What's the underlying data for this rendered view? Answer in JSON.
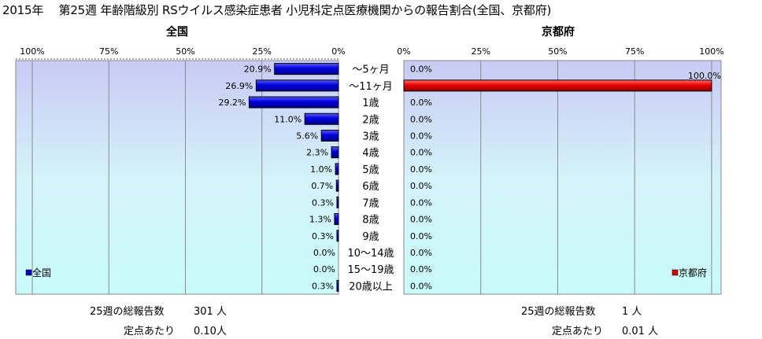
{
  "title": "2015年　 第25週 年齢階級別 RSウイルス感染症患者 小児科定点医療機関からの報告割合(全国、京都府)",
  "panels": {
    "left_label": "全国",
    "right_label": "京都府"
  },
  "chart_data": {
    "type": "bar",
    "title": "2015年　 第25週 年齢階級別 RSウイルス感染症患者 小児科定点医療機関からの報告割合(全国、京都府)",
    "orientation": "horizontal",
    "categories": [
      "～5ヶ月",
      "～11ヶ月",
      "1歳",
      "2歳",
      "3歳",
      "4歳",
      "5歳",
      "6歳",
      "7歳",
      "8歳",
      "9歳",
      "10～14歳",
      "15～19歳",
      "20歳以上"
    ],
    "xlim": [
      0,
      100
    ],
    "left_ticks": [
      "100%",
      "75%",
      "50%",
      "25%",
      "0%"
    ],
    "right_ticks": [
      "0%",
      "25%",
      "50%",
      "75%",
      "100%"
    ],
    "grid": true,
    "series": [
      {
        "name": "全国",
        "color": "#0000cc",
        "values": [
          20.9,
          26.9,
          29.2,
          11.0,
          5.6,
          2.3,
          1.0,
          0.7,
          0.3,
          1.3,
          0.3,
          0.0,
          0.0,
          0.3
        ],
        "labels": [
          "20.9%",
          "26.9%",
          "29.2%",
          "11.0%",
          "5.6%",
          "2.3%",
          "1.0%",
          "0.7%",
          "0.3%",
          "1.3%",
          "0.3%",
          "0.0%",
          "0.0%",
          "0.3%"
        ]
      },
      {
        "name": "京都府",
        "color": "#dd0000",
        "values": [
          0.0,
          100.0,
          0.0,
          0.0,
          0.0,
          0.0,
          0.0,
          0.0,
          0.0,
          0.0,
          0.0,
          0.0,
          0.0,
          0.0
        ],
        "labels": [
          "0.0%",
          "100.0%",
          "0.0%",
          "0.0%",
          "0.0%",
          "0.0%",
          "0.0%",
          "0.0%",
          "0.0%",
          "0.0%",
          "0.0%",
          "0.0%",
          "0.0%",
          "0.0%"
        ]
      }
    ],
    "legend": [
      "全国",
      "京都府"
    ]
  },
  "summary": {
    "left": {
      "total_label": "25週の総報告数",
      "total_value": "301 人",
      "per_label": "定点あたり",
      "per_value": "0.10人"
    },
    "right": {
      "total_label": "25週の総報告数",
      "total_value": "1 人",
      "per_label": "定点あたり",
      "per_value": "0.01 人"
    }
  }
}
